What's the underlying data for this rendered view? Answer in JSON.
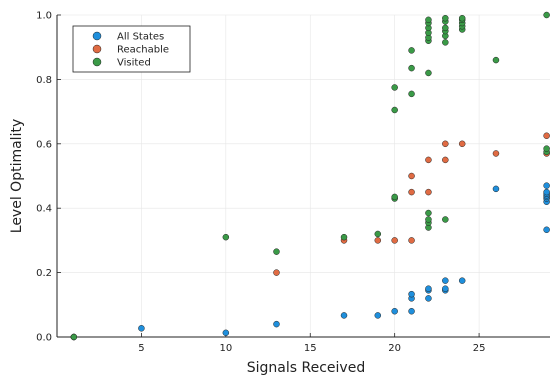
{
  "chart_data": {
    "type": "scatter",
    "xlabel": "Signals Received",
    "ylabel": "Level Optimality",
    "xlim": [
      0,
      29.2
    ],
    "ylim": [
      0,
      1.0
    ],
    "xticks": [
      5,
      10,
      15,
      20,
      25
    ],
    "yticks": [
      0.0,
      0.2,
      0.4,
      0.6,
      0.8,
      1.0
    ],
    "ytick_labels": [
      "0.0",
      "0.2",
      "0.4",
      "0.6",
      "0.8",
      "1.0"
    ],
    "grid": true,
    "legend_position": "top-left",
    "series": [
      {
        "name": "All States",
        "color": "#1f8fdc",
        "points": [
          [
            1,
            0.0
          ],
          [
            5,
            0.027
          ],
          [
            10,
            0.013
          ],
          [
            13,
            0.04
          ],
          [
            17,
            0.067
          ],
          [
            19,
            0.067
          ],
          [
            20,
            0.08
          ],
          [
            21,
            0.08
          ],
          [
            21,
            0.12
          ],
          [
            21,
            0.133
          ],
          [
            22,
            0.12
          ],
          [
            22,
            0.145
          ],
          [
            22,
            0.15
          ],
          [
            23,
            0.145
          ],
          [
            23,
            0.15
          ],
          [
            23,
            0.175
          ],
          [
            24,
            0.175
          ],
          [
            26,
            0.46
          ],
          [
            29,
            0.333
          ],
          [
            29,
            0.42
          ],
          [
            29,
            0.43
          ],
          [
            29,
            0.435
          ],
          [
            29,
            0.44
          ],
          [
            29,
            0.445
          ],
          [
            29,
            0.45
          ],
          [
            29,
            0.47
          ]
        ]
      },
      {
        "name": "Reachable",
        "color": "#e06b43",
        "points": [
          [
            1,
            0.0
          ],
          [
            13,
            0.2
          ],
          [
            17,
            0.3
          ],
          [
            19,
            0.3
          ],
          [
            20,
            0.3
          ],
          [
            21,
            0.3
          ],
          [
            21,
            0.45
          ],
          [
            21,
            0.5
          ],
          [
            22,
            0.45
          ],
          [
            22,
            0.55
          ],
          [
            23,
            0.55
          ],
          [
            23,
            0.6
          ],
          [
            24,
            0.6
          ],
          [
            26,
            0.57
          ],
          [
            29,
            0.57
          ],
          [
            29,
            0.625
          ]
        ]
      },
      {
        "name": "Visited",
        "color": "#3a9a47",
        "points": [
          [
            1,
            0.0
          ],
          [
            10,
            0.31
          ],
          [
            13,
            0.265
          ],
          [
            17,
            0.31
          ],
          [
            19,
            0.32
          ],
          [
            20,
            0.43
          ],
          [
            20,
            0.435
          ],
          [
            20,
            0.705
          ],
          [
            20,
            0.775
          ],
          [
            21,
            0.755
          ],
          [
            21,
            0.835
          ],
          [
            21,
            0.89
          ],
          [
            22,
            0.34
          ],
          [
            22,
            0.355
          ],
          [
            22,
            0.365
          ],
          [
            22,
            0.385
          ],
          [
            22,
            0.82
          ],
          [
            22,
            0.92
          ],
          [
            22,
            0.93
          ],
          [
            22,
            0.945
          ],
          [
            22,
            0.96
          ],
          [
            22,
            0.975
          ],
          [
            22,
            0.985
          ],
          [
            23,
            0.365
          ],
          [
            23,
            0.915
          ],
          [
            23,
            0.935
          ],
          [
            23,
            0.95
          ],
          [
            23,
            0.96
          ],
          [
            23,
            0.98
          ],
          [
            23,
            0.99
          ],
          [
            24,
            0.955
          ],
          [
            24,
            0.965
          ],
          [
            24,
            0.975
          ],
          [
            24,
            0.985
          ],
          [
            24,
            0.99
          ],
          [
            26,
            0.86
          ],
          [
            29,
            0.575
          ],
          [
            29,
            0.585
          ],
          [
            29,
            1.0
          ]
        ]
      }
    ]
  }
}
